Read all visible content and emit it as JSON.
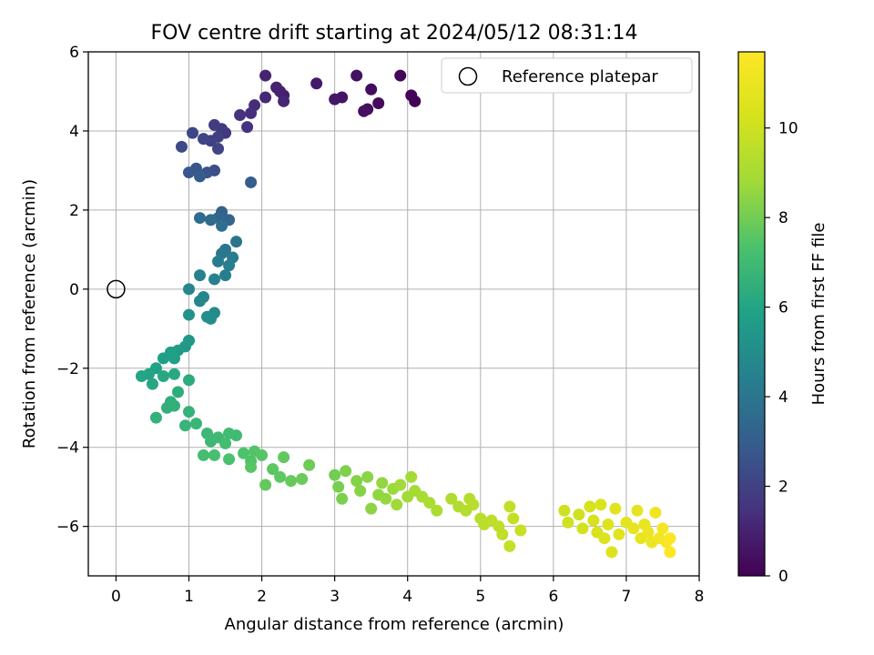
{
  "chart_data": {
    "type": "scatter",
    "title": "FOV centre drift starting at 2024/05/12 08:31:14",
    "xlabel": "Angular distance from reference (arcmin)",
    "ylabel": "Rotation from reference (arcmin)",
    "xlim": [
      -0.38,
      8.0
    ],
    "ylim": [
      -7.25,
      6.0
    ],
    "xticks": [
      0,
      1,
      2,
      3,
      4,
      5,
      6,
      7,
      8
    ],
    "yticks": [
      -6,
      -4,
      -2,
      0,
      2,
      4,
      6
    ],
    "grid": true,
    "legend": {
      "placement": "top-right",
      "entries": [
        {
          "label": "Reference platepar",
          "marker": "open-circle"
        }
      ]
    },
    "reference_point": {
      "x": 0,
      "y": 0
    },
    "colorbar": {
      "label": "Hours from first FF file",
      "range": [
        0,
        11.7
      ],
      "ticks": [
        0,
        2,
        4,
        6,
        8,
        10
      ],
      "colormap": "viridis"
    },
    "series": [
      {
        "points": [
          [
            4.1,
            4.75,
            0.0
          ],
          [
            4.05,
            4.9,
            0.1
          ],
          [
            3.9,
            5.4,
            0.2
          ],
          [
            3.6,
            4.7,
            0.3
          ],
          [
            3.5,
            5.05,
            0.35
          ],
          [
            3.45,
            4.55,
            0.4
          ],
          [
            3.4,
            4.5,
            0.45
          ],
          [
            3.3,
            5.4,
            0.5
          ],
          [
            3.1,
            4.85,
            0.6
          ],
          [
            3.0,
            4.8,
            0.65
          ],
          [
            2.75,
            5.2,
            0.75
          ],
          [
            2.3,
            4.9,
            0.9
          ],
          [
            2.25,
            5.0,
            0.95
          ],
          [
            2.2,
            5.1,
            1.0
          ],
          [
            2.05,
            5.4,
            1.05
          ],
          [
            2.3,
            4.75,
            1.1
          ],
          [
            2.05,
            4.85,
            1.2
          ],
          [
            1.9,
            4.65,
            1.3
          ],
          [
            1.85,
            4.45,
            1.4
          ],
          [
            1.8,
            4.1,
            1.45
          ],
          [
            1.7,
            4.4,
            1.5
          ],
          [
            1.5,
            3.95,
            1.6
          ],
          [
            1.45,
            4.05,
            1.7
          ],
          [
            1.35,
            4.15,
            1.8
          ],
          [
            1.4,
            3.85,
            1.9
          ],
          [
            1.3,
            3.75,
            2.0
          ],
          [
            1.4,
            3.55,
            2.05
          ],
          [
            1.2,
            3.8,
            2.1
          ],
          [
            1.05,
            3.95,
            2.2
          ],
          [
            0.9,
            3.6,
            2.3
          ],
          [
            1.35,
            3.0,
            2.5
          ],
          [
            1.25,
            2.95,
            2.6
          ],
          [
            1.1,
            3.05,
            2.7
          ],
          [
            1.0,
            2.95,
            2.8
          ],
          [
            1.15,
            2.85,
            2.9
          ],
          [
            1.85,
            2.7,
            3.0
          ],
          [
            1.45,
            1.95,
            3.2
          ],
          [
            1.55,
            1.75,
            3.3
          ],
          [
            1.4,
            1.8,
            3.4
          ],
          [
            1.3,
            1.75,
            3.5
          ],
          [
            1.15,
            1.8,
            3.6
          ],
          [
            1.45,
            1.6,
            3.7
          ],
          [
            1.65,
            1.2,
            3.9
          ],
          [
            1.5,
            1.0,
            4.0
          ],
          [
            1.45,
            0.9,
            4.1
          ],
          [
            1.6,
            0.8,
            4.2
          ],
          [
            1.4,
            0.7,
            4.25
          ],
          [
            1.55,
            0.6,
            4.3
          ],
          [
            1.5,
            0.35,
            4.4
          ],
          [
            1.15,
            0.35,
            4.5
          ],
          [
            1.35,
            0.25,
            4.55
          ],
          [
            1.0,
            0.0,
            4.65
          ],
          [
            1.2,
            -0.2,
            4.7
          ],
          [
            1.15,
            -0.3,
            4.75
          ],
          [
            1.35,
            -0.6,
            4.9
          ],
          [
            1.3,
            -0.75,
            5.0
          ],
          [
            1.25,
            -0.7,
            5.05
          ],
          [
            1.0,
            -0.65,
            5.2
          ],
          [
            1.0,
            -1.3,
            5.4
          ],
          [
            0.95,
            -1.45,
            5.5
          ],
          [
            0.85,
            -1.55,
            5.6
          ],
          [
            0.75,
            -1.6,
            5.7
          ],
          [
            0.65,
            -1.75,
            5.75
          ],
          [
            0.8,
            -1.75,
            5.8
          ],
          [
            0.55,
            -2.0,
            5.9
          ],
          [
            0.45,
            -2.15,
            6.0
          ],
          [
            0.35,
            -2.2,
            6.05
          ],
          [
            0.5,
            -2.4,
            6.1
          ],
          [
            0.65,
            -2.2,
            6.15
          ],
          [
            0.8,
            -2.15,
            6.2
          ],
          [
            1.0,
            -2.3,
            6.3
          ],
          [
            0.85,
            -2.6,
            6.35
          ],
          [
            0.75,
            -2.85,
            6.4
          ],
          [
            0.7,
            -3.0,
            6.45
          ],
          [
            0.8,
            -2.95,
            6.5
          ],
          [
            0.55,
            -3.25,
            6.55
          ],
          [
            1.0,
            -3.1,
            6.6
          ],
          [
            0.95,
            -3.45,
            6.7
          ],
          [
            1.1,
            -3.4,
            6.75
          ],
          [
            1.25,
            -3.65,
            6.85
          ],
          [
            1.3,
            -3.85,
            6.9
          ],
          [
            1.4,
            -3.75,
            6.95
          ],
          [
            1.55,
            -3.65,
            7.0
          ],
          [
            1.65,
            -3.7,
            7.05
          ],
          [
            1.5,
            -3.9,
            7.1
          ],
          [
            1.2,
            -4.2,
            7.15
          ],
          [
            1.35,
            -4.2,
            7.2
          ],
          [
            1.55,
            -4.3,
            7.3
          ],
          [
            1.75,
            -4.15,
            7.35
          ],
          [
            1.85,
            -4.35,
            7.4
          ],
          [
            1.9,
            -4.1,
            7.45
          ],
          [
            2.0,
            -4.2,
            7.5
          ],
          [
            1.85,
            -4.5,
            7.55
          ],
          [
            2.15,
            -4.55,
            7.6
          ],
          [
            2.25,
            -4.75,
            7.65
          ],
          [
            2.3,
            -4.25,
            7.7
          ],
          [
            2.05,
            -4.95,
            7.75
          ],
          [
            2.4,
            -4.85,
            7.8
          ],
          [
            2.55,
            -4.8,
            7.85
          ],
          [
            2.65,
            -4.45,
            7.9
          ],
          [
            3.0,
            -4.7,
            8.0
          ],
          [
            3.05,
            -5.0,
            8.1
          ],
          [
            3.1,
            -5.3,
            8.15
          ],
          [
            3.15,
            -4.6,
            8.2
          ],
          [
            3.3,
            -4.85,
            8.3
          ],
          [
            3.35,
            -5.1,
            8.35
          ],
          [
            3.45,
            -4.75,
            8.4
          ],
          [
            3.5,
            -5.55,
            8.45
          ],
          [
            3.6,
            -5.2,
            8.5
          ],
          [
            3.65,
            -4.9,
            8.55
          ],
          [
            3.7,
            -5.3,
            8.6
          ],
          [
            3.8,
            -5.05,
            8.7
          ],
          [
            3.85,
            -5.45,
            8.75
          ],
          [
            3.9,
            -4.95,
            8.8
          ],
          [
            4.0,
            -5.25,
            8.85
          ],
          [
            4.05,
            -4.75,
            8.9
          ],
          [
            4.1,
            -5.1,
            8.95
          ],
          [
            4.2,
            -5.25,
            9.0
          ],
          [
            4.3,
            -5.4,
            9.05
          ],
          [
            4.4,
            -5.6,
            9.1
          ],
          [
            4.6,
            -5.3,
            9.2
          ],
          [
            4.7,
            -5.5,
            9.25
          ],
          [
            4.8,
            -5.6,
            9.3
          ],
          [
            4.85,
            -5.3,
            9.35
          ],
          [
            4.9,
            -5.45,
            9.4
          ],
          [
            5.0,
            -5.8,
            9.45
          ],
          [
            5.05,
            -5.95,
            9.5
          ],
          [
            5.15,
            -5.85,
            9.55
          ],
          [
            5.25,
            -6.0,
            9.6
          ],
          [
            5.3,
            -6.2,
            9.65
          ],
          [
            5.4,
            -5.5,
            9.7
          ],
          [
            5.45,
            -5.8,
            9.75
          ],
          [
            5.4,
            -6.5,
            9.8
          ],
          [
            5.55,
            -6.1,
            9.85
          ],
          [
            6.15,
            -5.6,
            10.0
          ],
          [
            6.2,
            -5.9,
            10.05
          ],
          [
            6.35,
            -5.7,
            10.1
          ],
          [
            6.4,
            -6.05,
            10.15
          ],
          [
            6.5,
            -5.5,
            10.2
          ],
          [
            6.55,
            -5.85,
            10.3
          ],
          [
            6.6,
            -6.15,
            10.35
          ],
          [
            6.65,
            -5.45,
            10.4
          ],
          [
            6.7,
            -6.3,
            10.45
          ],
          [
            6.75,
            -5.95,
            10.5
          ],
          [
            6.8,
            -6.65,
            10.55
          ],
          [
            6.85,
            -5.55,
            10.6
          ],
          [
            6.9,
            -6.2,
            10.65
          ],
          [
            7.0,
            -5.9,
            10.7
          ],
          [
            7.1,
            -6.05,
            10.8
          ],
          [
            7.15,
            -5.6,
            10.85
          ],
          [
            7.2,
            -6.3,
            10.9
          ],
          [
            7.25,
            -5.95,
            11.0
          ],
          [
            7.3,
            -6.15,
            11.05
          ],
          [
            7.35,
            -6.4,
            11.1
          ],
          [
            7.4,
            -5.65,
            11.2
          ],
          [
            7.45,
            -6.3,
            11.3
          ],
          [
            7.5,
            -6.05,
            11.4
          ],
          [
            7.55,
            -6.4,
            11.5
          ],
          [
            7.6,
            -6.3,
            11.6
          ],
          [
            7.6,
            -6.65,
            11.7
          ]
        ]
      }
    ]
  }
}
